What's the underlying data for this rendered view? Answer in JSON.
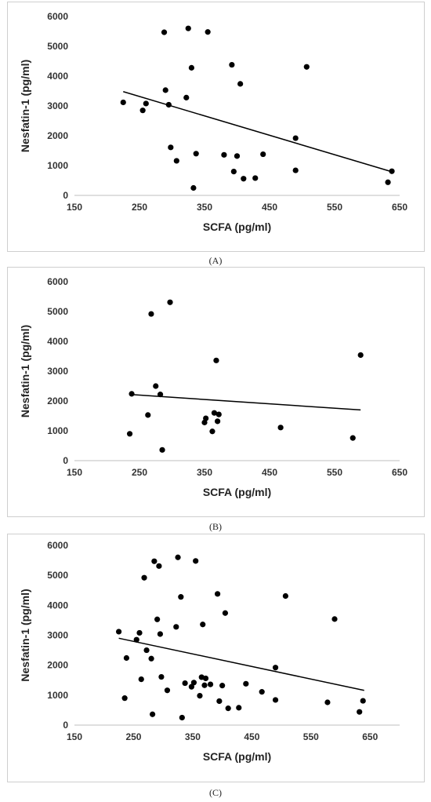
{
  "chart_data": [
    {
      "id": "A",
      "type": "scatter",
      "caption": "(A)",
      "xlabel": "SCFA (pg/ml)",
      "ylabel": "Nesfatin-1 (pg/ml)",
      "xlim": [
        150,
        650
      ],
      "ylim": [
        0,
        6000
      ],
      "xticks": [
        150,
        250,
        350,
        450,
        550,
        650
      ],
      "yticks": [
        0,
        1000,
        2000,
        3000,
        4000,
        5000,
        6000
      ],
      "grid": false,
      "points": [
        [
          225,
          3120
        ],
        [
          255,
          2850
        ],
        [
          260,
          3080
        ],
        [
          288,
          5470
        ],
        [
          290,
          3530
        ],
        [
          295,
          3040
        ],
        [
          298,
          1610
        ],
        [
          307,
          1160
        ],
        [
          322,
          3280
        ],
        [
          325,
          5600
        ],
        [
          330,
          4280
        ],
        [
          333,
          250
        ],
        [
          337,
          1400
        ],
        [
          355,
          5480
        ],
        [
          380,
          1360
        ],
        [
          392,
          4380
        ],
        [
          395,
          800
        ],
        [
          400,
          1320
        ],
        [
          405,
          3740
        ],
        [
          410,
          560
        ],
        [
          428,
          580
        ],
        [
          440,
          1380
        ],
        [
          490,
          1920
        ],
        [
          490,
          840
        ],
        [
          507,
          4310
        ],
        [
          632,
          440
        ],
        [
          638,
          810
        ]
      ],
      "trendline": [
        [
          225,
          3480
        ],
        [
          640,
          780
        ]
      ]
    },
    {
      "id": "B",
      "type": "scatter",
      "caption": "(B)",
      "xlabel": "SCFA (pg/ml)",
      "ylabel": "Nesfatin-1 (pg/ml)",
      "xlim": [
        150,
        650
      ],
      "ylim": [
        0,
        6000
      ],
      "xticks": [
        150,
        250,
        350,
        450,
        550,
        650
      ],
      "yticks": [
        0,
        1000,
        2000,
        3000,
        4000,
        5000,
        6000
      ],
      "grid": false,
      "points": [
        [
          235,
          900
        ],
        [
          238,
          2240
        ],
        [
          263,
          1530
        ],
        [
          268,
          4920
        ],
        [
          275,
          2500
        ],
        [
          282,
          2220
        ],
        [
          285,
          360
        ],
        [
          297,
          5310
        ],
        [
          350,
          1280
        ],
        [
          352,
          1420
        ],
        [
          362,
          980
        ],
        [
          365,
          1600
        ],
        [
          368,
          3360
        ],
        [
          370,
          1320
        ],
        [
          372,
          1550
        ],
        [
          467,
          1110
        ],
        [
          578,
          760
        ],
        [
          590,
          3540
        ]
      ],
      "trendline": [
        [
          235,
          2220
        ],
        [
          590,
          1700
        ]
      ]
    },
    {
      "id": "C",
      "type": "scatter",
      "caption": "(C)",
      "xlabel": "SCFA (pg/ml)",
      "ylabel": "Nesfatin-1 (pg/ml)",
      "xlim": [
        150,
        700
      ],
      "ylim": [
        0,
        6000
      ],
      "xticks": [
        150,
        250,
        350,
        450,
        550,
        650
      ],
      "yticks": [
        0,
        1000,
        2000,
        3000,
        4000,
        5000,
        6000
      ],
      "grid": false,
      "points": [
        [
          225,
          3120
        ],
        [
          235,
          900
        ],
        [
          238,
          2240
        ],
        [
          255,
          2850
        ],
        [
          260,
          3080
        ],
        [
          263,
          1530
        ],
        [
          268,
          4920
        ],
        [
          272,
          2500
        ],
        [
          280,
          2220
        ],
        [
          282,
          360
        ],
        [
          285,
          5470
        ],
        [
          290,
          3530
        ],
        [
          293,
          5310
        ],
        [
          295,
          3040
        ],
        [
          297,
          1610
        ],
        [
          307,
          1160
        ],
        [
          322,
          3280
        ],
        [
          325,
          5600
        ],
        [
          330,
          4280
        ],
        [
          332,
          250
        ],
        [
          337,
          1400
        ],
        [
          348,
          1280
        ],
        [
          352,
          1420
        ],
        [
          355,
          5480
        ],
        [
          362,
          980
        ],
        [
          365,
          1600
        ],
        [
          367,
          3360
        ],
        [
          370,
          1330
        ],
        [
          372,
          1560
        ],
        [
          380,
          1360
        ],
        [
          392,
          4380
        ],
        [
          395,
          800
        ],
        [
          400,
          1320
        ],
        [
          405,
          3740
        ],
        [
          410,
          560
        ],
        [
          428,
          580
        ],
        [
          440,
          1380
        ],
        [
          467,
          1110
        ],
        [
          490,
          1920
        ],
        [
          490,
          840
        ],
        [
          507,
          4310
        ],
        [
          578,
          760
        ],
        [
          590,
          3540
        ],
        [
          632,
          440
        ],
        [
          638,
          810
        ]
      ],
      "trendline": [
        [
          225,
          2900
        ],
        [
          640,
          1160
        ]
      ]
    }
  ]
}
